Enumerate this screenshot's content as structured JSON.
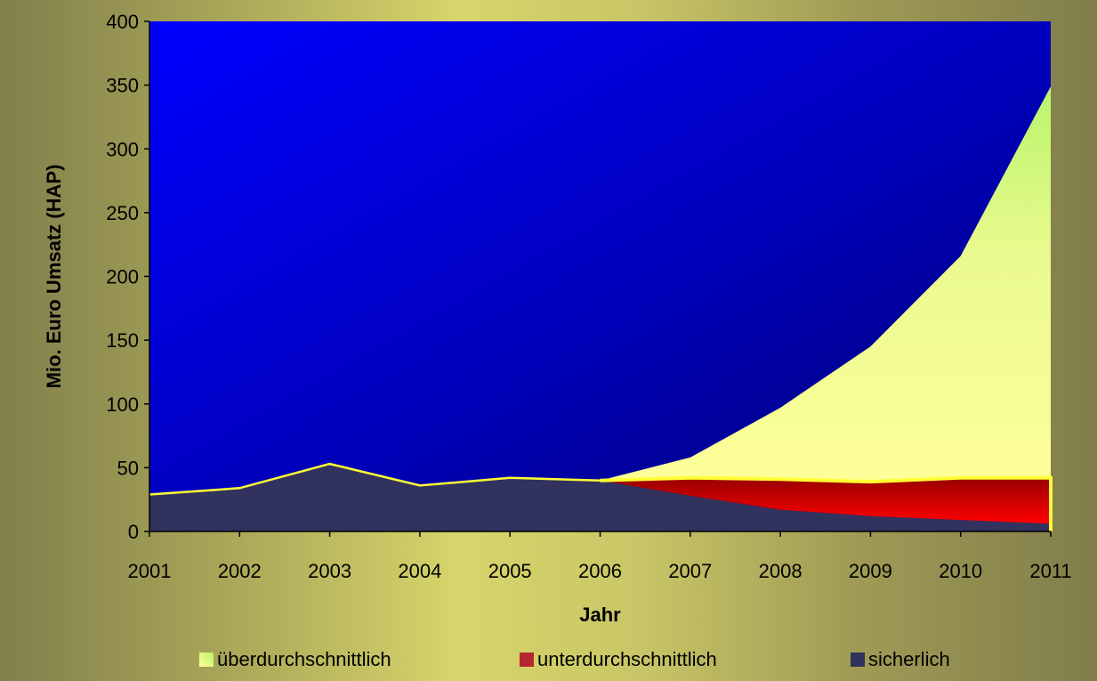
{
  "chart_data": {
    "type": "area",
    "title": "",
    "xlabel": "Jahr",
    "ylabel": "Mio. Euro Umsatz (HAP)",
    "ylim": [
      0,
      400
    ],
    "yticks": [
      0,
      50,
      100,
      150,
      200,
      250,
      300,
      350,
      400
    ],
    "categories": [
      "2001",
      "2002",
      "2003",
      "2004",
      "2005",
      "2006",
      "2007",
      "2008",
      "2009",
      "2010",
      "2011"
    ],
    "stacked": true,
    "legend_position": "bottom",
    "series": [
      {
        "name": "sicherlich",
        "color": "#32325f",
        "values": [
          29,
          34,
          53,
          36,
          42,
          40,
          28,
          17,
          12,
          9,
          6
        ]
      },
      {
        "name": "unterdurchschnittlich",
        "color": "#b52630",
        "values": [
          0,
          0,
          0,
          0,
          0,
          0,
          14,
          24,
          27,
          33,
          36
        ]
      },
      {
        "name": "überdurchschnittlich",
        "color": "#d8f28a",
        "values": [
          0,
          0,
          0,
          0,
          0,
          0,
          16,
          56,
          106,
          174,
          307
        ]
      }
    ]
  }
}
